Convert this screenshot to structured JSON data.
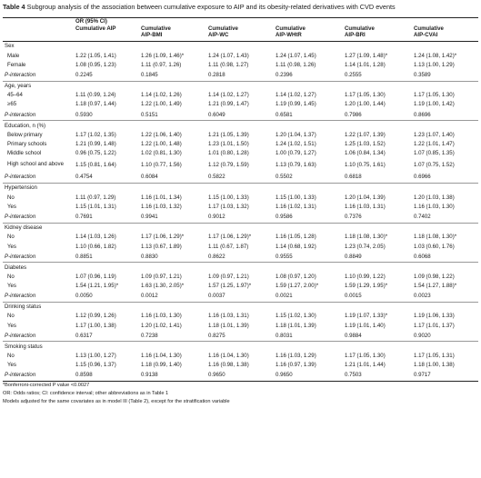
{
  "caption": {
    "label": "Table 4",
    "text": "Subgroup analysis of the association between cumulative exposure to AIP and its obesity-related derivatives with CVD events"
  },
  "header": {
    "group": "OR (95% CI)",
    "columns": [
      [
        "Cumulative AIP",
        ""
      ],
      [
        "Cumulative",
        "AIP-BMI"
      ],
      [
        "Cumulative",
        "AIP-WC"
      ],
      [
        "Cumulative",
        "AIP-WHtR"
      ],
      [
        "Cumulative",
        "AIP-BRI"
      ],
      [
        "Cumulative",
        "AIP-CVAI"
      ]
    ]
  },
  "sections": [
    {
      "title": "Sex",
      "rows": [
        {
          "label": "Male",
          "values": [
            "1.22 (1.05, 1.41)",
            "1.26 (1.09, 1.46)*",
            "1.24 (1.07, 1.43)",
            "1.24 (1.07, 1.45)",
            "1.27 (1.09, 1.48)*",
            "1.24 (1.08, 1.42)*"
          ]
        },
        {
          "label": "Female",
          "values": [
            "1.08 (0.95, 1.23)",
            "1.11 (0.97, 1.26)",
            "1.11 (0.98, 1.27)",
            "1.11 (0.98, 1.26)",
            "1.14 (1.01, 1.28)",
            "1.13 (1.00, 1.29)"
          ]
        }
      ],
      "p": [
        "0.2245",
        "0.1845",
        "0.2818",
        "0.2396",
        "0.2555",
        "0.3589"
      ]
    },
    {
      "title": "Age, years",
      "rows": [
        {
          "label": "45–64",
          "values": [
            "1.11 (0.99, 1.24)",
            "1.14 (1.02, 1.26)",
            "1.14 (1.02, 1.27)",
            "1.14 (1.02, 1.27)",
            "1.17 (1.05, 1.30)",
            "1.17 (1.05, 1.30)"
          ]
        },
        {
          "label": "≥65",
          "values": [
            "1.18 (0.97, 1.44)",
            "1.22 (1.00, 1.49)",
            "1.21 (0.99, 1.47)",
            "1.19 (0.99, 1.45)",
            "1.20 (1.00, 1.44)",
            "1.19 (1.00, 1.42)"
          ]
        }
      ],
      "p": [
        "0.5930",
        "0.5151",
        "0.6049",
        "0.6581",
        "0.7986",
        "0.8696"
      ]
    },
    {
      "title": "Education, n (%)",
      "rows": [
        {
          "label": "Below primary",
          "values": [
            "1.17 (1.02, 1.35)",
            "1.22 (1.06, 1.40)",
            "1.21 (1.05, 1.39)",
            "1.20 (1.04, 1.37)",
            "1.22 (1.07, 1.39)",
            "1.23 (1.07, 1.40)"
          ]
        },
        {
          "label": "Primary schools",
          "values": [
            "1.21 (0.99, 1.48)",
            "1.22 (1.00, 1.48)",
            "1.23 (1.01, 1.50)",
            "1.24 (1.02, 1.51)",
            "1.25 (1.03, 1.52)",
            "1.22 (1.01, 1.47)"
          ]
        },
        {
          "label": "Middle school",
          "values": [
            "0.96 (0.75, 1.22)",
            "1.02 (0.81, 1.30)",
            "1.01 (0.80, 1.28)",
            "1.00 (0.79, 1.27)",
            "1.06 (0.84, 1.34)",
            "1.07 (0.85, 1.35)"
          ]
        },
        {
          "label": "High school and above",
          "wrap": true,
          "values": [
            "1.15 (0.81, 1.64)",
            "1.10 (0.77, 1.56)",
            "1.12 (0.79, 1.59)",
            "1.13 (0.79, 1.63)",
            "1.10 (0.75, 1.61)",
            "1.07 (0.75, 1.52)"
          ]
        }
      ],
      "p": [
        "0.4754",
        "0.6084",
        "0.5822",
        "0.5502",
        "0.6818",
        "0.6966"
      ]
    },
    {
      "title": "Hypertension",
      "rows": [
        {
          "label": "No",
          "values": [
            "1.11 (0.97, 1.29)",
            "1.16 (1.01, 1.34)",
            "1.15 (1.00, 1.33)",
            "1.15 (1.00, 1.33)",
            "1.20 (1.04, 1.39)",
            "1.20 (1.03, 1.38)"
          ]
        },
        {
          "label": "Yes",
          "values": [
            "1.15 (1.01, 1.31)",
            "1.16 (1.03, 1.32)",
            "1.17 (1.03, 1.32)",
            "1.16 (1.02, 1.31)",
            "1.16 (1.03, 1.31)",
            "1.16 (1.03, 1.30)"
          ]
        }
      ],
      "p": [
        "0.7691",
        "0.9941",
        "0.9012",
        "0.9586",
        "0.7376",
        "0.7402"
      ]
    },
    {
      "title": "Kidney disease",
      "rows": [
        {
          "label": "No",
          "values": [
            "1.14 (1.03, 1.26)",
            "1.17 (1.06, 1.29)*",
            "1.17 (1.06, 1.29)*",
            "1.16 (1.05, 1.28)",
            "1.18 (1.08, 1.30)*",
            "1.18 (1.08, 1.30)*"
          ]
        },
        {
          "label": "Yes",
          "values": [
            "1.10 (0.66, 1.82)",
            "1.13 (0.67, 1.89)",
            "1.11 (0.67, 1.87)",
            "1.14 (0.68, 1.92)",
            "1.23 (0.74, 2.05)",
            "1.03 (0.60, 1.76)"
          ]
        }
      ],
      "p": [
        "0.8851",
        "0.8830",
        "0.8622",
        "0.9555",
        "0.8849",
        "0.6068"
      ]
    },
    {
      "title": "Diabetes",
      "rows": [
        {
          "label": "No",
          "values": [
            "1.07 (0.96, 1.19)",
            "1.09 (0.97, 1.21)",
            "1.09 (0.97, 1.21)",
            "1.08 (0.97, 1.20)",
            "1.10 (0.99, 1.22)",
            "1.09 (0.98, 1.22)"
          ]
        },
        {
          "label": "Yes",
          "values": [
            "1.54 (1.21, 1.95)*",
            "1.63 (1.30, 2.05)*",
            "1.57 (1.25, 1.97)*",
            "1.59 (1.27, 2.00)*",
            "1.59 (1.29, 1.95)*",
            "1.54 (1.27, 1.88)*"
          ]
        }
      ],
      "p": [
        "0.0050",
        "0.0012",
        "0.0037",
        "0.0021",
        "0.0015",
        "0.0023"
      ]
    },
    {
      "title": "Drinking status",
      "rows": [
        {
          "label": "No",
          "values": [
            "1.12 (0.99, 1.26)",
            "1.16 (1.03, 1.30)",
            "1.16 (1.03, 1.31)",
            "1.15 (1.02, 1.30)",
            "1.19 (1.07, 1.33)*",
            "1.19 (1.06, 1.33)"
          ]
        },
        {
          "label": "Yes",
          "values": [
            "1.17 (1.00, 1.38)",
            "1.20 (1.02, 1.41)",
            "1.18 (1.01, 1.39)",
            "1.18 (1.01, 1.39)",
            "1.19 (1.01, 1.40)",
            "1.17 (1.01, 1.37)"
          ]
        }
      ],
      "p": [
        "0.6317",
        "0.7238",
        "0.8275",
        "0.8031",
        "0.9884",
        "0.9020"
      ]
    },
    {
      "title": "Smoking status",
      "rows": [
        {
          "label": "No",
          "values": [
            "1.13 (1.00, 1.27)",
            "1.16 (1.04, 1.30)",
            "1.16 (1.04, 1.30)",
            "1.16 (1.03, 1.29)",
            "1.17 (1.05, 1.30)",
            "1.17 (1.05, 1.31)"
          ]
        },
        {
          "label": "Yes",
          "values": [
            "1.15 (0.96, 1.37)",
            "1.18 (0.99, 1.40)",
            "1.16 (0.98, 1.38)",
            "1.16 (0.97, 1.39)",
            "1.21 (1.01, 1.44)",
            "1.18 (1.00, 1.38)"
          ]
        }
      ],
      "p": [
        "0.8598",
        "0.9138",
        "0.9650",
        "0.9650",
        "0.7503",
        "0.9717"
      ]
    }
  ],
  "p_label": "P-interaction",
  "footnotes": [
    "*Bonferroni-corrected P value <0.0027",
    "OR: Odds ratios; CI: confidence interval; other abbreviations as in Table 1",
    "Models adjusted for the same covariates as in model III (Table 2), except for the stratification variable"
  ]
}
